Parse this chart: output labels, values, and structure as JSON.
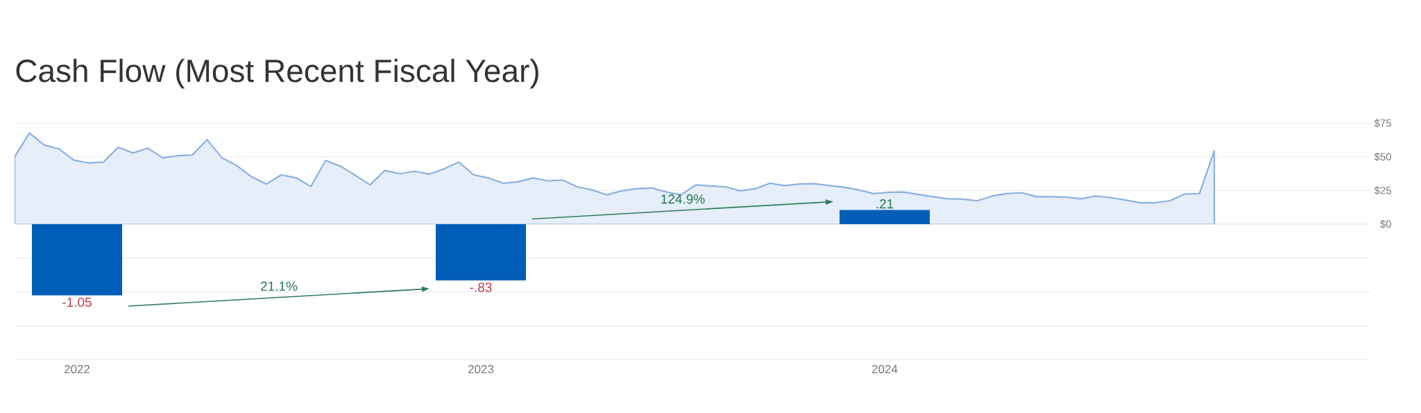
{
  "chart_data": [
    {
      "type": "area",
      "title": "Cash Flow (Most Recent Fiscal Year)",
      "color": "#e6eef9",
      "ylim": [
        0,
        75
      ],
      "yticks": [
        {
          "value": 0,
          "label": "$0"
        },
        {
          "value": 25,
          "label": "$25"
        },
        {
          "value": 50,
          "label": "$50"
        },
        {
          "value": 75,
          "label": "$75"
        }
      ],
      "grid": "y",
      "tick_labels": "y",
      "categories": [
        null,
        null,
        null,
        null,
        null,
        null,
        null,
        null,
        null,
        null,
        null,
        null,
        null,
        null,
        null,
        null,
        null,
        null,
        null,
        null,
        null,
        null,
        null,
        null,
        null,
        null,
        null,
        null,
        null,
        null,
        null,
        null,
        null,
        null,
        null,
        null,
        null,
        null,
        null,
        null,
        null,
        null,
        null,
        null,
        null,
        null,
        null,
        null,
        null,
        null,
        null,
        null,
        null,
        null,
        null,
        null,
        null,
        null,
        null,
        null,
        null,
        null,
        null,
        null,
        null,
        null,
        null,
        null,
        null,
        null,
        null,
        null,
        null,
        null,
        null,
        null,
        null,
        null,
        null,
        null,
        null,
        null
      ],
      "values": [
        49.9,
        67.7,
        58.8,
        55.9,
        47.6,
        45.5,
        46.1,
        57.2,
        52.9,
        56.4,
        49.3,
        50.8,
        51.4,
        62.7,
        49.3,
        43.5,
        35.2,
        29.8,
        36.6,
        34.5,
        28.0,
        47.3,
        43.1,
        36.3,
        29.2,
        39.9,
        37.5,
        39.3,
        37.2,
        41.1,
        46.1,
        36.6,
        34.3,
        30.4,
        31.5,
        34.3,
        32.2,
        32.8,
        27.7,
        25.4,
        21.8,
        24.8,
        26.3,
        26.9,
        23.9,
        21.8,
        29.2,
        28.4,
        27.7,
        24.8,
        26.3,
        30.4,
        28.7,
        29.8,
        30.1,
        28.7,
        27.5,
        25.4,
        22.7,
        23.6,
        23.9,
        22.1,
        20.4,
        18.9,
        18.6,
        17.4,
        20.9,
        22.7,
        23.3,
        20.4,
        20.4,
        20.1,
        18.9,
        20.9,
        19.7,
        18.0,
        15.9,
        15.9,
        17.4,
        22.4,
        22.7,
        54.4
      ]
    },
    {
      "type": "bar",
      "categories": [
        "2022",
        "2023",
        "2024"
      ],
      "values": [
        -1.05,
        -0.83,
        0.21
      ],
      "value_labels": [
        "-1.05",
        "-.83",
        ".21"
      ],
      "color": "#005eb8",
      "yticks": [
        {
          "value": -2,
          "label": null
        },
        {
          "value": -1.5,
          "label": null
        },
        {
          "value": -1,
          "label": null
        },
        {
          "value": -0.5,
          "label": null
        },
        {
          "value": 0,
          "label": null
        }
      ],
      "grid": "y",
      "tick_labels": "x",
      "annotations": [
        "21.1%",
        "124.9%"
      ]
    }
  ]
}
